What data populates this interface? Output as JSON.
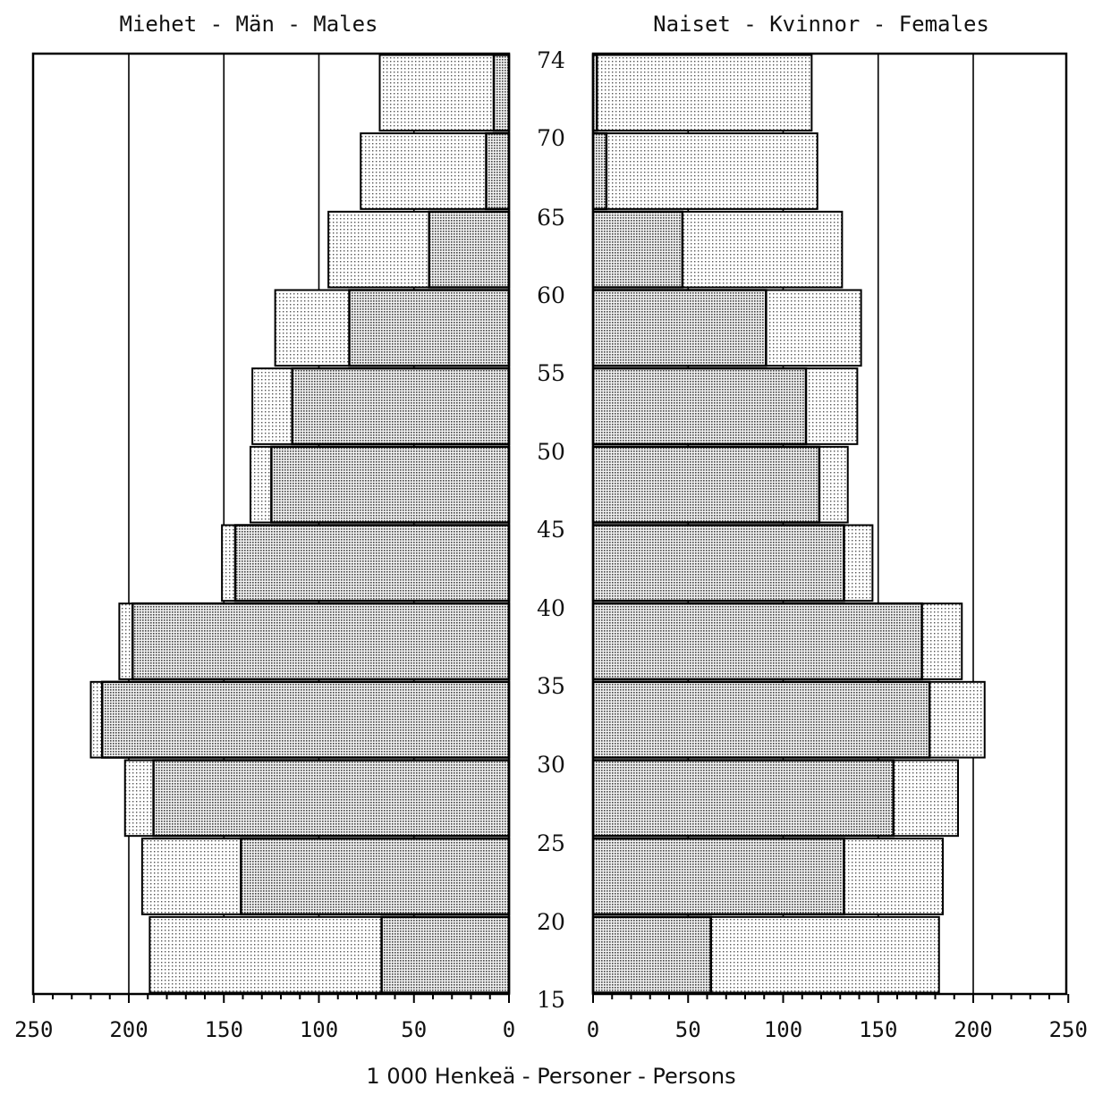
{
  "left_title": "Miehet - Män - Males",
  "right_title": "Naiset - Kvinnor - Females",
  "xlabel": "1 000 Henkeä - Personer - Persons",
  "age_ticks": [
    "74",
    "70",
    "65",
    "60",
    "55",
    "50",
    "45",
    "40",
    "35",
    "30",
    "25",
    "20",
    "15"
  ],
  "left_tick_labels": [
    "250",
    "200",
    "150",
    "100",
    "50",
    "0"
  ],
  "right_tick_labels": [
    "0",
    "50",
    "100",
    "150",
    "200",
    "250"
  ],
  "chart_data": {
    "type": "bar",
    "orientation": "horizontal",
    "style": "population pyramid",
    "age_groups": [
      "15-19",
      "20-24",
      "25-29",
      "30-34",
      "35-39",
      "40-44",
      "45-49",
      "50-54",
      "55-59",
      "60-64",
      "65-69",
      "70-74"
    ],
    "x_range": [
      0,
      250
    ],
    "males": {
      "outer": [
        189,
        193,
        202,
        220,
        205,
        151,
        136,
        135,
        123,
        95,
        78,
        68
      ],
      "inner": [
        67,
        141,
        187,
        214,
        198,
        144,
        125,
        114,
        84,
        42,
        12,
        8
      ]
    },
    "females": {
      "outer": [
        182,
        184,
        192,
        206,
        194,
        147,
        134,
        139,
        141,
        131,
        118,
        115
      ],
      "inner": [
        62,
        132,
        158,
        177,
        173,
        132,
        119,
        112,
        91,
        47,
        7,
        2
      ]
    },
    "grid": true
  }
}
